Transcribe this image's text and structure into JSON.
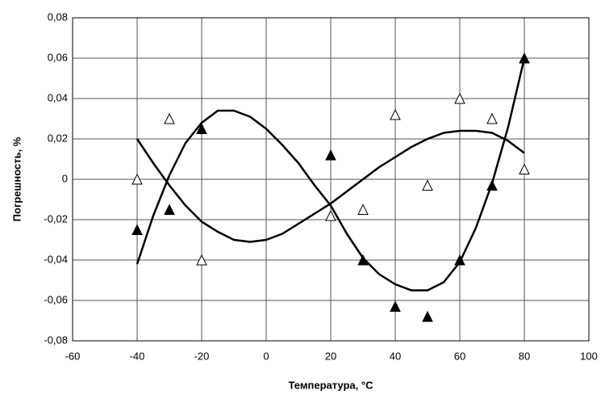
{
  "chart_data": {
    "type": "scatter",
    "xlabel": "Температура, °С",
    "ylabel": "Погрешность, %",
    "xlim": [
      -60,
      100
    ],
    "xticks": [
      -60,
      -40,
      -20,
      0,
      20,
      40,
      60,
      80,
      100
    ],
    "ylim": [
      -0.08,
      0.08
    ],
    "yticks": [
      {
        "value": -0.08,
        "label": "-0,08"
      },
      {
        "value": -0.06,
        "label": "-0,06"
      },
      {
        "value": -0.04,
        "label": "-0,04"
      },
      {
        "value": -0.02,
        "label": "-0,02"
      },
      0,
      {
        "value": 0.02,
        "label": "0,02"
      },
      {
        "value": 0.04,
        "label": "0,04"
      },
      {
        "value": 0.06,
        "label": "0,06"
      },
      {
        "value": 0.08,
        "label": "0,08"
      }
    ],
    "grid": true,
    "series": [
      {
        "color": "#000000",
        "marker": "triangle-filled",
        "x": [
          -40,
          -30,
          -20,
          20,
          30,
          40,
          50,
          60,
          70,
          80
        ],
        "values": [
          -0.025,
          -0.015,
          0.025,
          0.012,
          -0.04,
          -0.063,
          -0.068,
          -0.04,
          -0.003,
          0.06
        ]
      },
      {
        "color": "#000000",
        "marker": "triangle-open",
        "x": [
          -40,
          -30,
          -20,
          20,
          30,
          40,
          50,
          60,
          70,
          80
        ],
        "values": [
          0.0,
          0.03,
          -0.04,
          -0.018,
          -0.015,
          0.032,
          -0.003,
          0.04,
          0.03,
          0.005
        ]
      },
      {
        "color": "#000000",
        "marker": "line",
        "x": [
          -40,
          -35,
          -30,
          -25,
          -20,
          -15,
          -10,
          -5,
          0,
          5,
          10,
          15,
          20,
          25,
          30,
          35,
          40,
          45,
          50,
          55,
          60,
          65,
          70,
          75,
          80
        ],
        "values": [
          -0.042,
          -0.018,
          0.002,
          0.018,
          0.028,
          0.034,
          0.034,
          0.031,
          0.025,
          0.017,
          0.008,
          -0.003,
          -0.013,
          -0.027,
          -0.039,
          -0.047,
          -0.052,
          -0.055,
          -0.055,
          -0.051,
          -0.041,
          -0.024,
          -0.002,
          0.026,
          0.06
        ]
      },
      {
        "color": "#000000",
        "marker": "line",
        "x": [
          -40,
          -35,
          -30,
          -25,
          -20,
          -15,
          -10,
          -5,
          0,
          5,
          10,
          15,
          20,
          25,
          30,
          35,
          40,
          45,
          50,
          55,
          60,
          65,
          70,
          75,
          80
        ],
        "values": [
          0.02,
          0.008,
          -0.003,
          -0.013,
          -0.021,
          -0.026,
          -0.03,
          -0.031,
          -0.03,
          -0.027,
          -0.022,
          -0.017,
          -0.012,
          -0.006,
          0.0,
          0.006,
          0.011,
          0.016,
          0.02,
          0.023,
          0.024,
          0.024,
          0.023,
          0.019,
          0.013
        ]
      }
    ]
  }
}
